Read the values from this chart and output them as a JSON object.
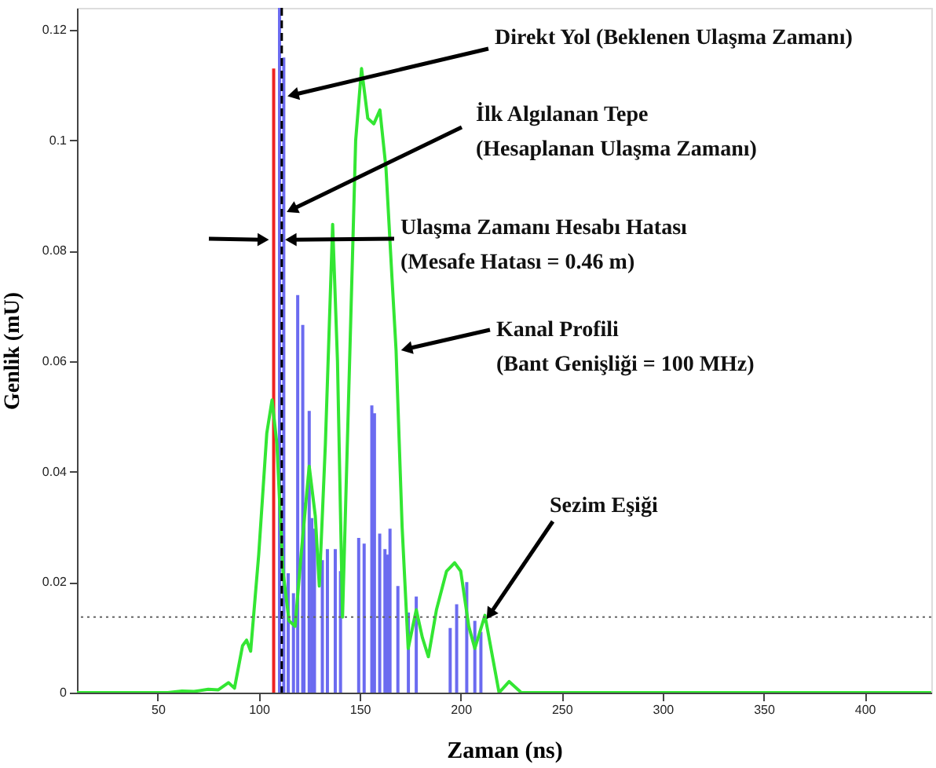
{
  "chart_data": {
    "type": "line",
    "xlabel": "Zaman (ns)",
    "ylabel": "Genlik (mU)",
    "xlim": [
      10,
      433
    ],
    "ylim": [
      0,
      0.124
    ],
    "xticks": [
      50,
      100,
      150,
      200,
      250,
      300,
      350,
      400
    ],
    "yticks": [
      0,
      0.02,
      0.04,
      0.06,
      0.08,
      0.1,
      0.12
    ],
    "grid": false,
    "series": [
      {
        "type": "bar",
        "color": "#6b6bf0",
        "x": [
          110.3,
          112.4,
          114.6,
          117.2,
          119.3,
          121.8,
          122.4,
          125,
          126.3,
          127.6,
          131.5,
          134,
          137.9,
          140.5,
          149.5,
          152.2,
          156,
          157.3,
          159.9,
          162.5,
          163.8,
          165,
          168.9,
          174.1,
          178,
          194.8,
          198,
          203,
          207,
          210
        ],
        "values": [
          0.124,
          0.115,
          0.0216,
          0.018,
          0.072,
          0.0666,
          0.0344,
          0.051,
          0.0316,
          0.0297,
          0.024,
          0.026,
          0.026,
          0.022,
          0.028,
          0.027,
          0.052,
          0.0506,
          0.0288,
          0.026,
          0.025,
          0.0297,
          0.0193,
          0.0145,
          0.0174,
          0.0117,
          0.016,
          0.02,
          0.013,
          0.011
        ]
      },
      {
        "type": "bar",
        "color": "#ee2222",
        "x": [
          107.4
        ],
        "values": [
          0.113
        ]
      },
      {
        "color": "#33e633",
        "x": [
          10,
          55,
          62,
          68,
          75,
          80,
          85,
          88,
          92,
          94,
          96,
          100,
          104,
          106.6,
          109,
          112,
          115,
          118,
          121,
          125,
          128,
          130,
          133,
          136.6,
          139,
          141.5,
          145,
          148,
          150.9,
          154,
          157,
          160,
          163,
          166,
          168,
          171,
          174,
          178,
          181,
          184,
          188,
          193,
          197,
          200,
          204,
          207,
          212,
          216,
          219,
          224,
          230,
          433
        ],
        "values": [
          0,
          0,
          0.0003,
          0.0002,
          0.0006,
          0.0005,
          0.0018,
          0.0008,
          0.0085,
          0.0095,
          0.0075,
          0.025,
          0.047,
          0.053,
          0.045,
          0.022,
          0.013,
          0.012,
          0.025,
          0.041,
          0.032,
          0.0193,
          0.045,
          0.0848,
          0.06,
          0.0137,
          0.06,
          0.1,
          0.113,
          0.104,
          0.103,
          0.1055,
          0.095,
          0.075,
          0.062,
          0.03,
          0.008,
          0.015,
          0.01,
          0.0065,
          0.015,
          0.022,
          0.0235,
          0.022,
          0.012,
          0.008,
          0.014,
          0.006,
          0,
          0.002,
          0,
          0
        ]
      }
    ],
    "ref_lines": [
      {
        "axis": "x",
        "value": 111.4,
        "color": "#000000",
        "line_style": "dashed"
      },
      {
        "axis": "y",
        "value": 0.0137,
        "color": "#666666",
        "line_style": "dotted"
      }
    ],
    "annotations": [
      {
        "text": "Direkt Yol (Beklenen Ulaşma Zamanı)",
        "x": 111,
        "y": 0.108
      },
      {
        "text": "İlk Algılanan Tepe\n(Hesaplanan  Ulaşma Zamanı)",
        "x": 111.4,
        "y": 0.087
      },
      {
        "text": "Ulaşma Zamanı  Hesabı Hatası\n(Mesafe Hatası = 0.46 m)",
        "x": 111.4,
        "y": 0.082
      },
      {
        "text": "Kanal Profili\n(Bant Genişliği = 100 MHz)",
        "x": 168,
        "y": 0.062
      },
      {
        "text": "Sezim Eşiği",
        "x": 212,
        "y": 0.013
      }
    ]
  }
}
